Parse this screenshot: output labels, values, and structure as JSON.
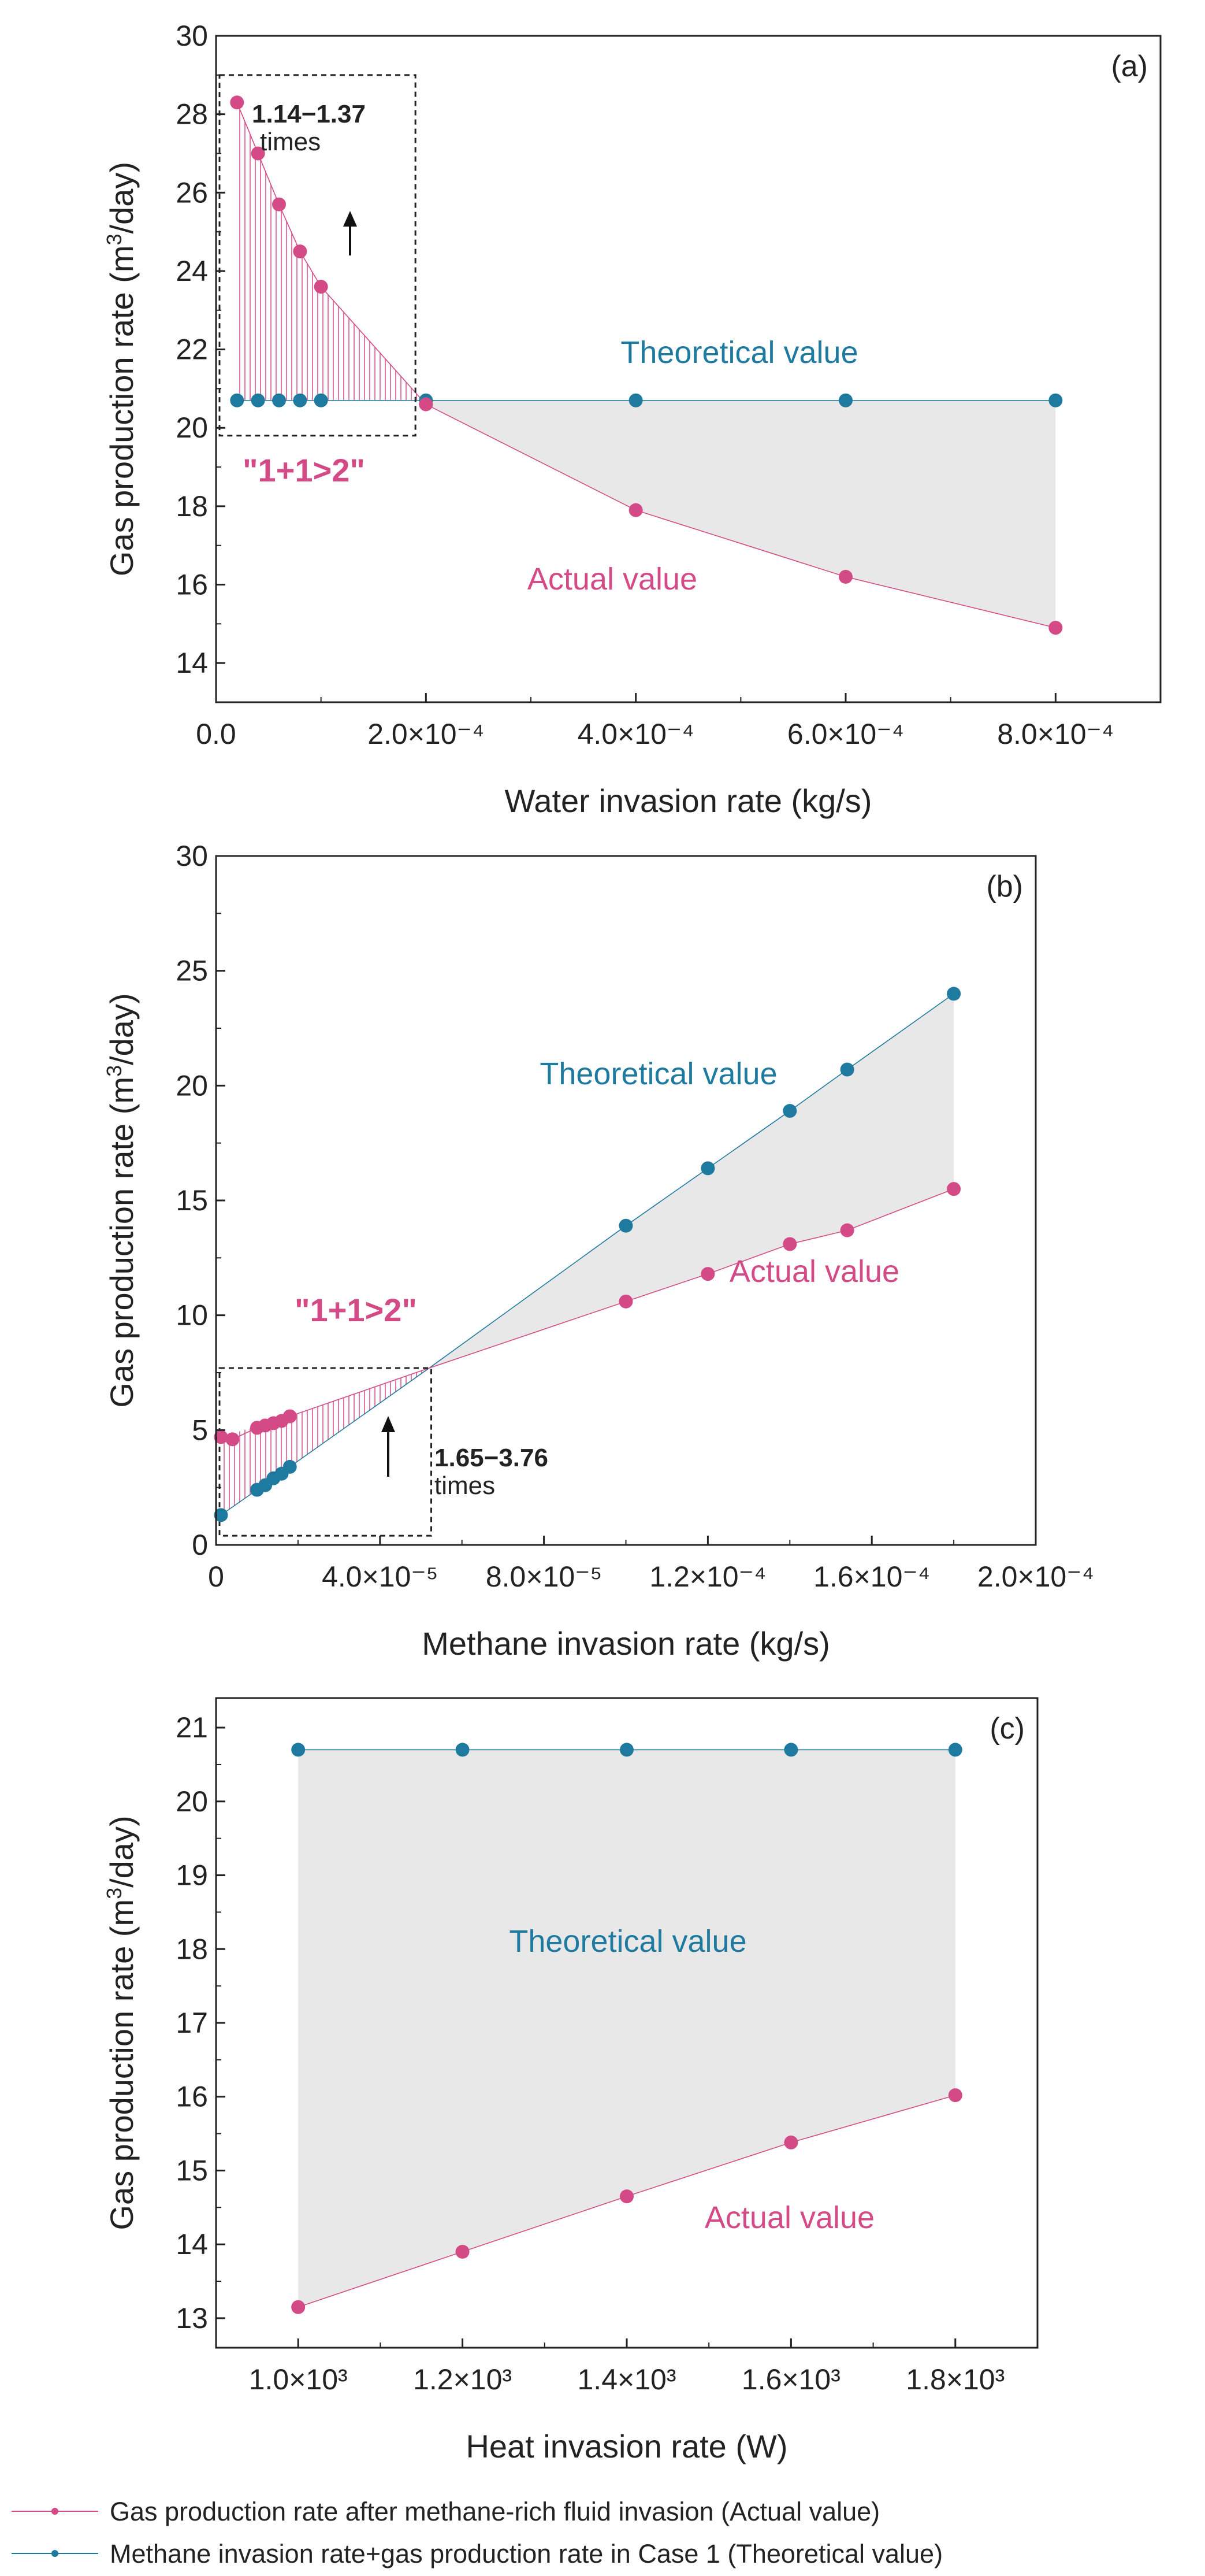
{
  "colors": {
    "actual": "#d44a86",
    "theoretical": "#1f7aa0",
    "shade_gray": "#e8e8e8",
    "hatch_pink": "#d44a86",
    "axis": "#222222",
    "annotation": "#222222"
  },
  "legend": {
    "actual_label": "Gas production rate after methane-rich fluid invasion (Actual value)",
    "theoretical_label": "Methane invasion rate+gas production rate in Case 1 (Theoretical value)"
  },
  "chart_data": [
    {
      "type": "scatter",
      "panel_label": "(a)",
      "xlabel": "Water invasion rate (kg/s)",
      "ylabel": "Gas production rate (m³/day)",
      "ylabel_main": "Gas production rate (m",
      "ylabel_sup": "3",
      "ylabel_tail": "/day)",
      "xlim": [
        0,
        0.0009
      ],
      "ylim": [
        13,
        30
      ],
      "xticks": [
        0,
        0.0002,
        0.0004,
        0.0006,
        0.0008
      ],
      "xtick_labels": [
        "0.0",
        "2.0×10⁻⁴",
        "4.0×10⁻⁴",
        "6.0×10⁻⁴",
        "8.0×10⁻⁴"
      ],
      "yticks": [
        14,
        16,
        18,
        20,
        22,
        24,
        26,
        28,
        30
      ],
      "ytick_labels": [
        "14",
        "16",
        "18",
        "20",
        "22",
        "24",
        "26",
        "28",
        "30"
      ],
      "series": [
        {
          "key": "actual",
          "x": [
            2e-05,
            4e-05,
            6e-05,
            8e-05,
            0.0001,
            0.0002,
            0.0004,
            0.0006,
            0.0008
          ],
          "values": [
            28.3,
            27.0,
            25.7,
            24.5,
            23.6,
            20.6,
            17.9,
            16.2,
            14.9
          ]
        },
        {
          "key": "theoretical",
          "x": [
            2e-05,
            4e-05,
            6e-05,
            8e-05,
            0.0001,
            0.0002,
            0.0004,
            0.0006,
            0.0008
          ],
          "values": [
            20.7,
            20.7,
            20.7,
            20.7,
            20.7,
            20.7,
            20.7,
            20.7,
            20.7
          ]
        }
      ],
      "hatch_until_index": 5,
      "box": {
        "x": [
          0,
          0.00019
        ],
        "y": [
          19.8,
          29.0
        ]
      },
      "annotations": {
        "times_1": "1.14−1.37",
        "times_2": "times",
        "synergy": "\"1+1>2\"",
        "theoretical": "Theoretical value",
        "actual": "Actual value"
      }
    },
    {
      "type": "scatter",
      "panel_label": "(b)",
      "xlabel": "Methane invasion rate (kg/s)",
      "ylabel": "Gas production rate (m³/day)",
      "ylabel_main": "Gas production rate (m",
      "ylabel_sup": "3",
      "ylabel_tail": "/day)",
      "xlim": [
        0,
        0.0002
      ],
      "ylim": [
        0,
        30
      ],
      "xticks": [
        0,
        4e-05,
        8e-05,
        0.00012,
        0.00016,
        0.0002
      ],
      "xtick_labels": [
        "0",
        "4.0×10⁻⁵",
        "8.0×10⁻⁵",
        "1.2×10⁻⁴",
        "1.6×10⁻⁴",
        "2.0×10⁻⁴"
      ],
      "yticks": [
        0,
        5,
        10,
        15,
        20,
        25,
        30
      ],
      "ytick_labels": [
        "0",
        "5",
        "10",
        "15",
        "20",
        "25",
        "30"
      ],
      "series": [
        {
          "key": "actual",
          "x": [
            1.2e-06,
            4e-06,
            1e-05,
            1.2e-05,
            1.4e-05,
            1.6e-05,
            1.8e-05,
            0.0001,
            0.00012,
            0.00014,
            0.000154,
            0.00018
          ],
          "values": [
            4.7,
            4.6,
            5.1,
            5.2,
            5.3,
            5.4,
            5.6,
            10.6,
            11.8,
            13.1,
            13.7,
            15.5
          ]
        },
        {
          "key": "theoretical",
          "x": [
            1.2e-06,
            1e-05,
            1.2e-05,
            1.4e-05,
            1.6e-05,
            1.8e-05,
            0.0001,
            0.00012,
            0.00014,
            0.000154,
            0.00018
          ],
          "values": [
            1.3,
            2.4,
            2.6,
            2.9,
            3.1,
            3.4,
            13.9,
            16.4,
            18.9,
            20.7,
            24.0
          ]
        }
      ],
      "crossing": {
        "x": 5.2e-05,
        "y": 7.7
      },
      "box": {
        "x": [
          0,
          5.25e-05
        ],
        "y": [
          0.4,
          7.7
        ]
      },
      "annotations": {
        "times_1": "1.65−3.76",
        "times_2": "times",
        "synergy": "\"1+1>2\"",
        "theoretical": "Theoretical value",
        "actual": "Actual value"
      }
    },
    {
      "type": "scatter",
      "panel_label": "(c)",
      "xlabel": "Heat invasion rate (W)",
      "ylabel": "Gas production rate (m³/day)",
      "ylabel_main": "Gas production rate (m",
      "ylabel_sup": "3",
      "ylabel_tail": "/day)",
      "xlim": [
        900,
        1900
      ],
      "ylim": [
        12.6,
        21.4
      ],
      "xticks": [
        1000,
        1200,
        1400,
        1600,
        1800
      ],
      "xtick_labels": [
        "1.0×10³",
        "1.2×10³",
        "1.4×10³",
        "1.6×10³",
        "1.8×10³"
      ],
      "yticks": [
        13,
        14,
        15,
        16,
        17,
        18,
        19,
        20,
        21
      ],
      "ytick_labels": [
        "13",
        "14",
        "15",
        "16",
        "17",
        "18",
        "19",
        "20",
        "21"
      ],
      "series": [
        {
          "key": "actual",
          "x": [
            1000,
            1200,
            1400,
            1600,
            1800
          ],
          "values": [
            13.15,
            13.9,
            14.65,
            15.38,
            16.02
          ]
        },
        {
          "key": "theoretical",
          "x": [
            1000,
            1200,
            1400,
            1600,
            1800
          ],
          "values": [
            20.7,
            20.7,
            20.7,
            20.7,
            20.7
          ]
        }
      ],
      "annotations": {
        "theoretical": "Theoretical value",
        "actual": "Actual value"
      }
    }
  ]
}
